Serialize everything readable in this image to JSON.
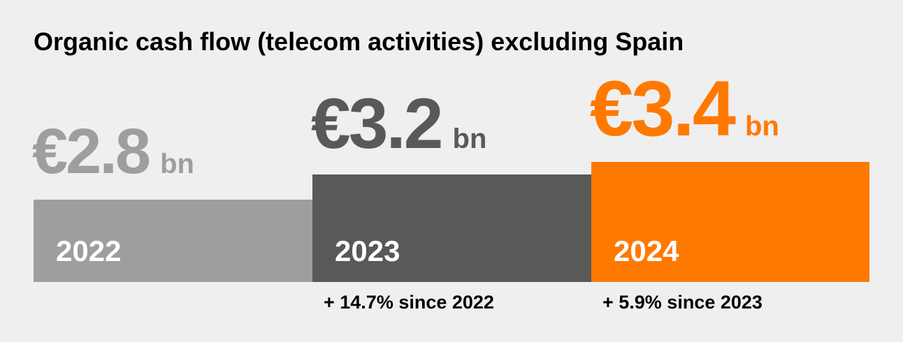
{
  "chart_data": {
    "type": "bar",
    "title": "Organic cash flow (telecom activities) excluding Spain",
    "unit": "bn",
    "currency": "€",
    "categories": [
      "2022",
      "2023",
      "2024"
    ],
    "values": [
      2.8,
      3.2,
      3.4
    ],
    "value_labels": [
      "€2.8",
      "€3.2",
      "€3.4"
    ],
    "growth_labels": [
      "",
      "+ 14.7% since 2022",
      "+ 5.9% since 2023"
    ],
    "colors": {
      "bar": [
        "#9e9e9e",
        "#595959",
        "#ff7900"
      ],
      "value_text": [
        "#9e9e9e",
        "#595959",
        "#ff7900"
      ],
      "year_text": "#ffffff",
      "growth_text": "#000000"
    }
  }
}
